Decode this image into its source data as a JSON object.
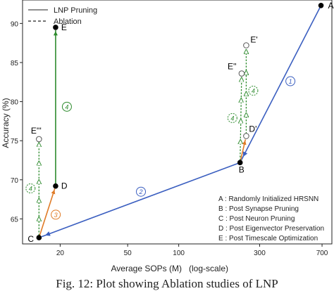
{
  "chart_data": {
    "type": "line",
    "xlabel": "Average SOPs (M)",
    "xscale_note": "(log-scale)",
    "ylabel": "Accuracy (%)",
    "xscale": "log",
    "xlim": [
      12,
      800
    ],
    "ylim": [
      61.8,
      93
    ],
    "xticks": [
      20,
      50,
      100,
      300,
      700
    ],
    "yticks": [
      65,
      70,
      75,
      80,
      85,
      90
    ],
    "grid": false,
    "legend_placement": "top-left",
    "legend": [
      {
        "label": "LNP Pruning",
        "style": "solid"
      },
      {
        "label": "Ablation",
        "style": "dashed"
      }
    ],
    "points": [
      {
        "label": "A",
        "x": 690,
        "y": 92.3,
        "marker": "filled"
      },
      {
        "label": "B",
        "x": 230,
        "y": 72.2,
        "marker": "filled"
      },
      {
        "label": "C",
        "x": 15,
        "y": 62.6,
        "marker": "filled"
      },
      {
        "label": "D",
        "x": 18.8,
        "y": 69.2,
        "marker": "filled"
      },
      {
        "label": "E",
        "x": 18.8,
        "y": 89.5,
        "marker": "filled"
      },
      {
        "label": "E'''",
        "x": 15,
        "y": 75.2,
        "marker": "open"
      },
      {
        "label": "D'",
        "x": 250,
        "y": 75.6,
        "marker": "open"
      },
      {
        "label": "E''",
        "x": 235,
        "y": 83.6,
        "marker": "open"
      },
      {
        "label": "E'",
        "x": 250,
        "y": 87.2,
        "marker": "open"
      }
    ],
    "segments": [
      {
        "from": "A",
        "to": "B",
        "step": "1",
        "color": "#3b5fc0",
        "style": "solid"
      },
      {
        "from": "B",
        "to": "C",
        "step": "2",
        "color": "#3b5fc0",
        "style": "solid"
      },
      {
        "from": "C",
        "to": "D",
        "step": "3",
        "color": "#e07b27",
        "style": "solid"
      },
      {
        "from": "D",
        "to": "E",
        "step": "4",
        "color": "#2e8b2e",
        "style": "solid"
      },
      {
        "from": "C",
        "to": "E'''",
        "step": "4",
        "color": "#2e8b2e",
        "style": "dashed"
      },
      {
        "from": "B",
        "to": "D'",
        "step": "3",
        "color": "#e07b27",
        "style": "solid"
      },
      {
        "from": "B",
        "to": "E''",
        "step": "4",
        "color": "#2e8b2e",
        "style": "dashed"
      },
      {
        "from": "D'",
        "to": "E'",
        "step": "4",
        "color": "#2e8b2e",
        "style": "dashed"
      }
    ],
    "annotations": [
      "A : Randomly Initialized HRSNN",
      "B : Post Synapse Pruning",
      "C : Post Neuron Pruning",
      "D : Post Eigenvector Preservation",
      "E : Post Timescale Optimization"
    ]
  },
  "caption": "Fig. 12: Plot showing Ablation studies of LNP"
}
